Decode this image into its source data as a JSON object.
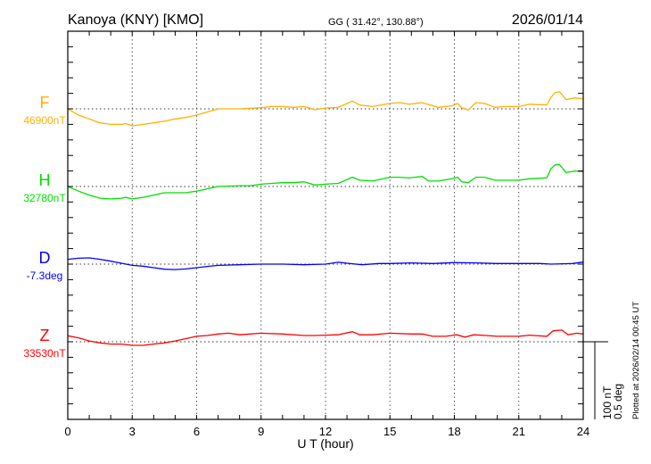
{
  "header": {
    "station": "Kanoya (KNY)  [KMO]",
    "coords": "GG ( 31.42°, 130.88°)",
    "date": "2026/01/14"
  },
  "footer": {
    "plotted_at": "Plotted at 2026/02/14 00:45 UT"
  },
  "chart_data": {
    "type": "line",
    "xlabel": "U T (hour)",
    "xlim": [
      0,
      24
    ],
    "xticks": [
      "0",
      "3",
      "6",
      "9",
      "12",
      "15",
      "18",
      "21",
      "24"
    ],
    "grid": "dotted vertical every 3 h, dotted baseline per component",
    "scale_bar": {
      "nT_label": "100 nT",
      "deg_label": "0.5 deg",
      "nT": 100,
      "deg": 0.5
    },
    "series": [
      {
        "name": "F",
        "baseline_label": "46900nT",
        "color": "#ffb000",
        "unit": "nT",
        "baseline": 46900,
        "x": [
          0,
          0.5,
          1,
          1.5,
          2,
          2.5,
          2.7,
          3,
          3.5,
          4,
          4.5,
          5,
          5.5,
          6,
          6.5,
          7,
          8,
          9,
          9.5,
          10,
          10.5,
          11,
          11.5,
          12,
          12.6,
          13.25,
          13.6,
          14.2,
          15,
          15.45,
          15.9,
          16.5,
          17.25,
          17.9,
          18.15,
          18.35,
          18.65,
          19,
          19.4,
          19.9,
          20.4,
          21,
          21.5,
          22.3,
          22.5,
          22.7,
          22.9,
          23.2,
          23.6,
          24
        ],
        "y": [
          0,
          -8,
          -13,
          -18,
          -20,
          -20,
          -19,
          -22,
          -20,
          -18,
          -16,
          -13,
          -11,
          -8,
          -4,
          0,
          0,
          1.5,
          3,
          3,
          2,
          3,
          -1,
          1,
          2,
          10,
          5,
          3,
          7,
          8,
          6,
          8,
          2,
          4,
          7,
          1,
          -1.5,
          8,
          7,
          2,
          3,
          3,
          6,
          5,
          15,
          21,
          22,
          12,
          14,
          13
        ]
      },
      {
        "name": "H",
        "baseline_label": "32780nT",
        "color": "#00e000",
        "unit": "nT",
        "baseline": 32780,
        "x": [
          0,
          0.5,
          1,
          1.5,
          2,
          2.5,
          2.7,
          3,
          3.5,
          4,
          4.5,
          5,
          5.5,
          6,
          6.5,
          7,
          8,
          8.5,
          9,
          9.5,
          10,
          10.5,
          11,
          11.5,
          12,
          12.6,
          13.25,
          13.6,
          14.2,
          15,
          15.45,
          15.9,
          16.5,
          16.8,
          17.25,
          17.9,
          18.15,
          18.35,
          18.65,
          19,
          19.4,
          19.9,
          20.4,
          21,
          21.5,
          22.3,
          22.5,
          22.7,
          22.9,
          23.2,
          23.6,
          24
        ],
        "y": [
          0,
          -6,
          -11,
          -15,
          -16,
          -15,
          -14,
          -16,
          -14,
          -11,
          -8,
          -8,
          -8,
          -6,
          -3,
          0,
          1,
          1,
          3,
          4,
          5,
          5,
          6,
          2,
          3,
          4,
          12,
          8,
          7,
          12,
          12,
          11,
          13,
          7,
          7,
          10,
          12,
          6,
          5,
          12,
          12,
          8,
          8,
          8,
          10,
          11,
          23,
          28,
          28,
          18,
          20,
          19
        ]
      },
      {
        "name": "D",
        "baseline_label": "-7.3deg",
        "color": "#0000ff",
        "unit": "deg",
        "baseline": -7.3,
        "x": [
          0,
          0.5,
          1,
          1.5,
          2,
          2.5,
          3,
          3.5,
          4,
          4.5,
          5,
          5.5,
          6,
          6.5,
          7,
          8,
          9,
          10,
          11,
          12,
          12.6,
          13,
          13.7,
          14.5,
          15,
          16,
          17,
          18,
          19,
          20,
          21,
          22,
          22.5,
          23.5,
          24
        ],
        "y": [
          0.031,
          0.038,
          0.04,
          0.031,
          0.019,
          0.006,
          -0.008,
          -0.013,
          -0.023,
          -0.033,
          -0.035,
          -0.031,
          -0.023,
          -0.015,
          -0.008,
          -0.004,
          0,
          0,
          -0.004,
          0,
          0.012,
          0.006,
          -0.004,
          0.004,
          0.004,
          0.008,
          0.004,
          0.01,
          0.008,
          0.004,
          0.004,
          0.004,
          0,
          0.004,
          0.013
        ]
      },
      {
        "name": "Z",
        "baseline_label": "33530nT",
        "color": "#ff0000",
        "unit": "nT",
        "baseline": 33530,
        "x": [
          0,
          0.5,
          1,
          1.5,
          2,
          2.5,
          3,
          3.5,
          4,
          4.5,
          5,
          5.5,
          6,
          6.5,
          7,
          7.5,
          8,
          8.5,
          9,
          10,
          11,
          11.5,
          12,
          12.6,
          13.25,
          13.6,
          14.2,
          15,
          16,
          16.5,
          17,
          17.6,
          18.1,
          18.5,
          18.9,
          19.5,
          20,
          21,
          21.5,
          22.3,
          22.6,
          23,
          23.3,
          23.7,
          24
        ],
        "y": [
          7.7,
          5,
          1,
          -1.5,
          -3,
          -3,
          -4.6,
          -4.6,
          -3,
          -1.5,
          1,
          4,
          7,
          8,
          10,
          11,
          9,
          10,
          11,
          10,
          8,
          8,
          8.5,
          9,
          13,
          9,
          9,
          11,
          10,
          10,
          7,
          7,
          9,
          6,
          9,
          8,
          7,
          7,
          8.5,
          7,
          14,
          15,
          9,
          11,
          10
        ]
      }
    ]
  }
}
